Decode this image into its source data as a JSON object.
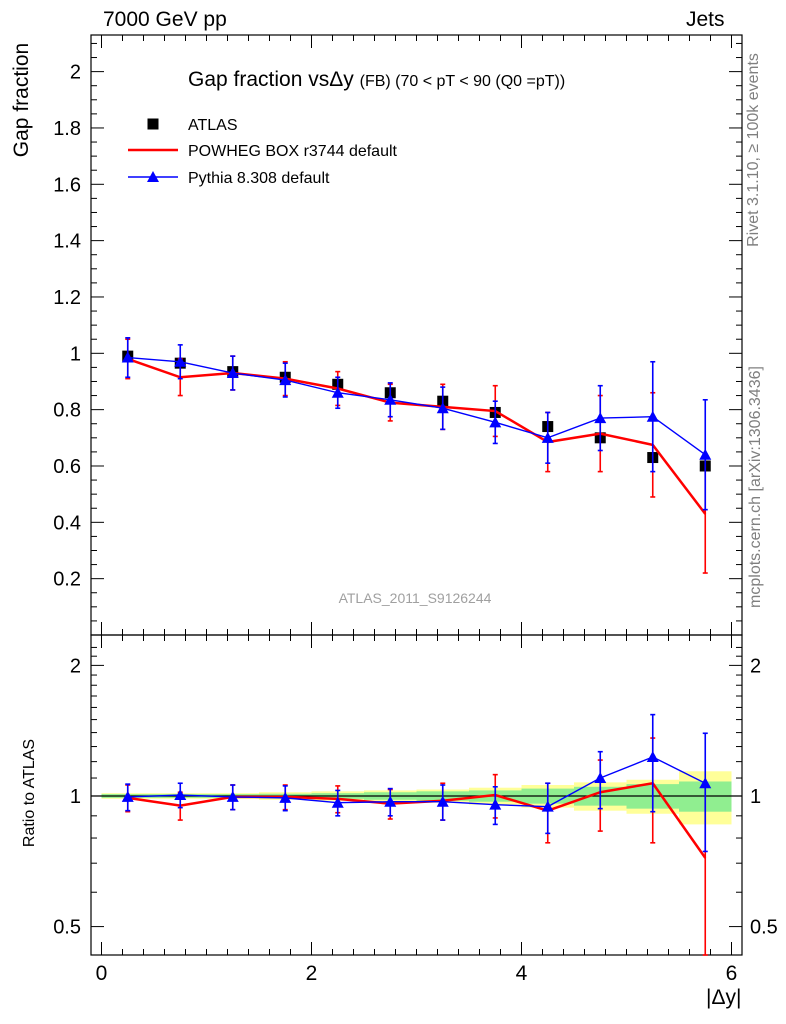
{
  "header": {
    "energy_label": "7000 GeV pp",
    "process_label": "Jets"
  },
  "side": {
    "rivet": "Rivet 3.1.10, ≥ 100k events",
    "mcplots": "mcplots.cern.ch [arXiv:1306.3436]"
  },
  "chart_data": [
    {
      "type": "scatter",
      "panel": "main",
      "title": "Gap fraction vsΔy",
      "title_suffix": "(FB) (70 < pT <  90 (Q0 =pT))",
      "ylabel": "Gap fraction",
      "xlabel": "",
      "annotation": "ATLAS_2011_S9126244",
      "xlim": [
        -0.1,
        6.1
      ],
      "ylim": [
        0,
        2.13
      ],
      "x_ticks": [
        0,
        2,
        4,
        6
      ],
      "y_ticks": [
        0.2,
        0.4,
        0.6,
        0.8,
        1,
        1.2,
        1.4,
        1.6,
        1.8,
        2
      ],
      "y_tick_labels": [
        "0.2",
        "0.4",
        "0.6",
        "0.8",
        "1",
        "1.2",
        "1.4",
        "1.6",
        "1.8",
        "2"
      ],
      "grid": false,
      "legend_position": "top-left",
      "x": [
        0.25,
        0.75,
        1.25,
        1.75,
        2.25,
        2.75,
        3.25,
        3.75,
        4.25,
        4.75,
        5.25,
        5.75
      ],
      "series": [
        {
          "name": "ATLAS",
          "color": "#000000",
          "marker": "square",
          "values": [
            0.99,
            0.965,
            0.935,
            0.915,
            0.89,
            0.86,
            0.83,
            0.79,
            0.74,
            0.7,
            0.63,
            0.6
          ]
        },
        {
          "name": "POWHEG BOX r3744 default",
          "color": "#ff0000",
          "marker": "line",
          "values": [
            0.98,
            0.915,
            0.93,
            0.91,
            0.875,
            0.825,
            0.81,
            0.795,
            0.685,
            0.715,
            0.675,
            0.43
          ],
          "err": [
            0.07,
            0.065,
            0.06,
            0.06,
            0.06,
            0.065,
            0.08,
            0.09,
            0.105,
            0.135,
            0.185,
            0.21
          ]
        },
        {
          "name": "Pythia 8.308 default",
          "color": "#0000ff",
          "marker": "triangle",
          "values": [
            0.985,
            0.97,
            0.93,
            0.905,
            0.86,
            0.835,
            0.805,
            0.755,
            0.7,
            0.77,
            0.775,
            0.64
          ],
          "err": [
            0.07,
            0.06,
            0.06,
            0.06,
            0.055,
            0.06,
            0.075,
            0.075,
            0.09,
            0.115,
            0.195,
            0.195
          ]
        }
      ]
    },
    {
      "type": "scatter",
      "panel": "ratio",
      "ylabel": "Ratio to ATLAS",
      "xlabel": "|Δy|",
      "xlim": [
        -0.1,
        6.1
      ],
      "ylim": [
        0.43,
        2.35
      ],
      "y_scale": "log",
      "x_ticks": [
        0,
        2,
        4,
        6
      ],
      "x_tick_labels": [
        "0",
        "2",
        "4",
        "6"
      ],
      "y_ticks": [
        0.5,
        1,
        2
      ],
      "y_tick_labels": [
        "0.5",
        "1",
        "2"
      ],
      "grid": false,
      "x": [
        0.25,
        0.75,
        1.25,
        1.75,
        2.25,
        2.75,
        3.25,
        3.75,
        4.25,
        4.75,
        5.25,
        5.75
      ],
      "reference_band": {
        "stat_color": "#90ee90",
        "total_color": "#ffff99",
        "stat_err": [
          0.01,
          0.01,
          0.01,
          0.012,
          0.015,
          0.02,
          0.025,
          0.03,
          0.04,
          0.05,
          0.065,
          0.08
        ],
        "total_err": [
          0.015,
          0.015,
          0.015,
          0.02,
          0.025,
          0.03,
          0.035,
          0.045,
          0.06,
          0.075,
          0.09,
          0.14
        ]
      },
      "series": [
        {
          "name": "POWHEG BOX r3744 default",
          "color": "#ff0000",
          "values": [
            0.99,
            0.95,
            0.995,
            0.995,
            0.985,
            0.96,
            0.975,
            1.005,
            0.925,
            1.02,
            1.07,
            0.72
          ],
          "err": [
            0.07,
            0.07,
            0.065,
            0.065,
            0.07,
            0.075,
            0.095,
            0.115,
            0.145,
            0.19,
            0.29,
            0.35
          ]
        },
        {
          "name": "Pythia 8.308 default",
          "color": "#0000ff",
          "values": [
            0.995,
            1.005,
            0.995,
            0.99,
            0.965,
            0.97,
            0.97,
            0.955,
            0.945,
            1.1,
            1.23,
            1.07
          ],
          "err": [
            0.07,
            0.065,
            0.065,
            0.065,
            0.065,
            0.07,
            0.09,
            0.095,
            0.125,
            0.165,
            0.31,
            0.325
          ]
        }
      ]
    }
  ]
}
